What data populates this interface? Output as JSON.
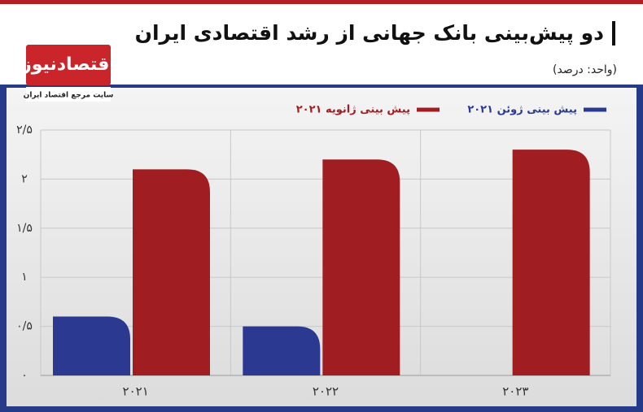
{
  "logo": {
    "name": "اقتصادنیوز",
    "tagline": "سایت مرجع اقتصاد ایران"
  },
  "chart_data": {
    "type": "bar",
    "title": "دو پیش‌بینی بانک جهانی از رشد اقتصادی ایران",
    "subtitle": "(واحد: درصد)",
    "categories": [
      "۲۰۲۱",
      "۲۰۲۲",
      "۲۰۲۳"
    ],
    "series": [
      {
        "name": "پیش بینی ژوئن ۲۰۲۱",
        "color": "#2b3990",
        "values": [
          0.6,
          0.5,
          null
        ]
      },
      {
        "name": "پیش بینی ژانویه ۲۰۲۱",
        "color": "#a01e22",
        "values": [
          2.1,
          2.2,
          2.3
        ]
      }
    ],
    "ylim": [
      0,
      2.5
    ],
    "yticks": [
      {
        "value": 0,
        "label": "۰"
      },
      {
        "value": 0.5,
        "label": "۰/۵"
      },
      {
        "value": 1,
        "label": "۱"
      },
      {
        "value": 1.5,
        "label": "۱/۵"
      },
      {
        "value": 2,
        "label": "۲"
      },
      {
        "value": 2.5,
        "label": "۲/۵"
      }
    ],
    "grid": true
  }
}
